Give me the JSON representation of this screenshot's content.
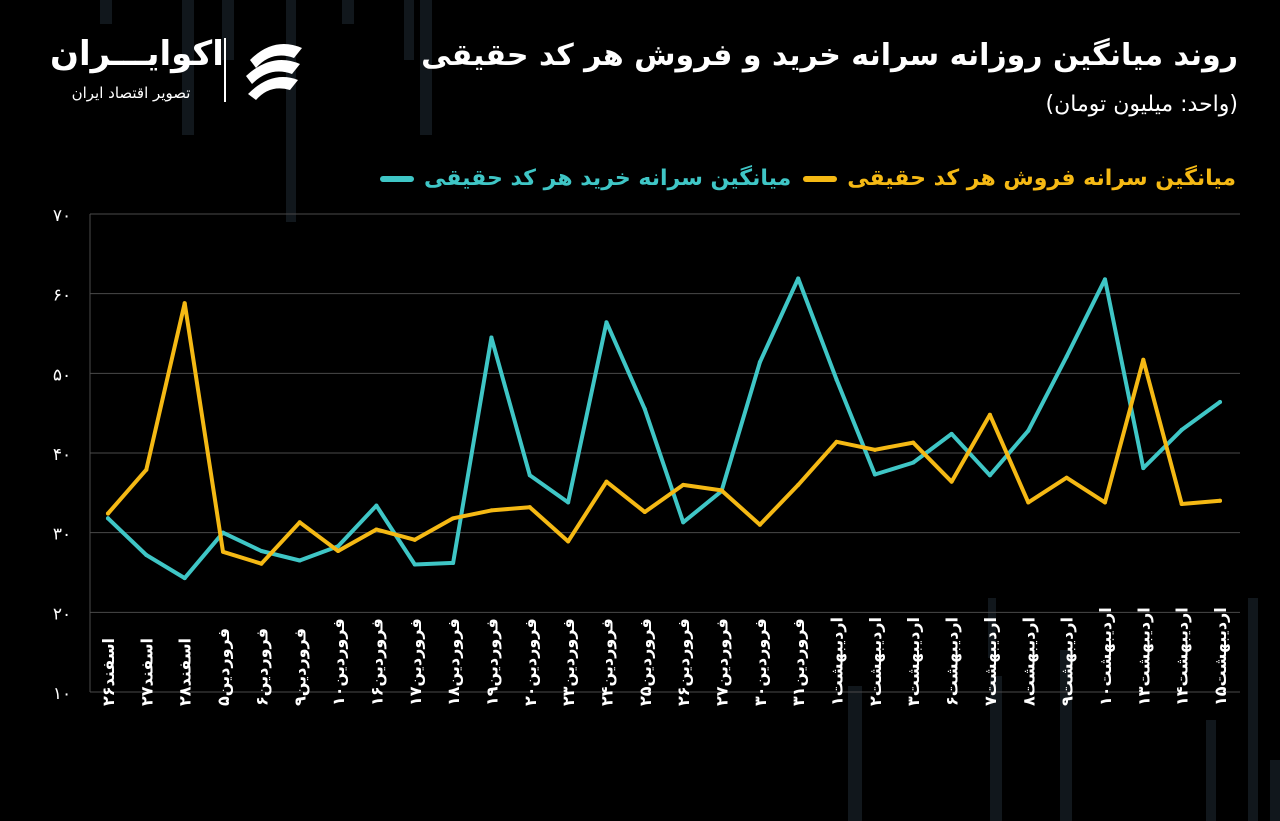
{
  "header": {
    "title": "روند میانگین روزانه سرانه خرید و فروش هر کد حقیقی",
    "subtitle": "(واحد: میلیون تومان)"
  },
  "logo": {
    "name": "اکوایـــران",
    "tagline": "تصویر اقتصاد ایران",
    "mark_icon": "ecoiran-logo-icon"
  },
  "colors": {
    "background": "#000000",
    "buy": "#3FC6C6",
    "sell": "#F5B914",
    "grid": "#4A4A4A",
    "deco": "#1F2A33"
  },
  "chart_data": {
    "type": "line",
    "title": "روند میانگین روزانه سرانه خرید و فروش هر کد حقیقی",
    "ylabel": "",
    "xlabel": "",
    "ylim": [
      10,
      70
    ],
    "yticks": [
      10,
      20,
      30,
      40,
      50,
      60,
      70
    ],
    "ytick_labels": [
      "۱۰",
      "۲۰",
      "۳۰",
      "۴۰",
      "۵۰",
      "۶۰",
      "۷۰"
    ],
    "grid": true,
    "legend_position": "top-right",
    "categories": [
      "اسفند۲۶",
      "اسفند۲۷",
      "اسفند۲۸",
      "فروردین۵",
      "فروردین۶",
      "فروردین۹",
      "فروردین۱۰",
      "فروردین۱۶",
      "فروردین۱۷",
      "فروردین۱۸",
      "فروردین۱۹",
      "فروردین۲۰",
      "فروردین۲۳",
      "فروردین۲۴",
      "فروردین۲۵",
      "فروردین۲۶",
      "فروردین۲۷",
      "فروردین۳۰",
      "فروردین۳۱",
      "اردیبهشت۱",
      "اردیبهشت۲",
      "اردیبهشت۳",
      "اردیبهشت۶",
      "اردیبهشت۷",
      "اردیبهشت۸",
      "اردیبهشت۹",
      "اردیبهشت۱۰",
      "اردیبهشت۱۳",
      "اردیبهشت۱۴",
      "اردیبهشت۱۵"
    ],
    "series": [
      {
        "name": "میانگین سرانه خرید هر کد حقیقی",
        "color": "#3FC6C6",
        "values": [
          31.8,
          27.2,
          24.3,
          30.0,
          27.7,
          26.5,
          28.3,
          33.4,
          26.0,
          26.2,
          54.5,
          37.2,
          33.8,
          56.4,
          45.5,
          31.3,
          35.2,
          51.4,
          61.9,
          49.2,
          37.3,
          38.8,
          42.4,
          37.2,
          42.8,
          52.1,
          61.8,
          38.1,
          42.9,
          46.4
        ]
      },
      {
        "name": "میانگین سرانه فروش هر کد حقیقی",
        "color": "#F5B914",
        "values": [
          32.4,
          37.9,
          58.8,
          27.6,
          26.1,
          31.3,
          27.7,
          30.4,
          29.1,
          31.8,
          32.8,
          33.2,
          28.9,
          36.4,
          32.6,
          36.0,
          35.3,
          31.0,
          36.0,
          41.4,
          40.4,
          41.3,
          36.4,
          44.8,
          33.8,
          36.9,
          33.8,
          51.7,
          33.6,
          34.0
        ]
      }
    ]
  }
}
